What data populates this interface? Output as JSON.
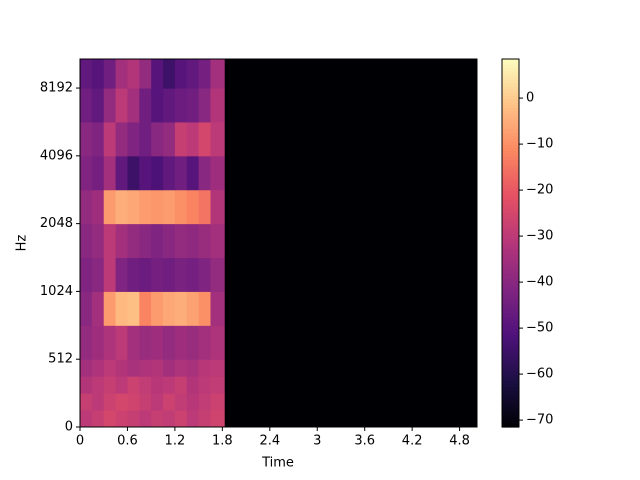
{
  "chart_data": {
    "type": "heatmap",
    "colormap": "magma",
    "yscale": "symlog",
    "xlabel": "Time",
    "ylabel": "Hz",
    "xlim": [
      0,
      5.02
    ],
    "xticks": [
      0,
      0.6,
      1.2,
      1.8,
      2.4,
      3,
      3.6,
      4.2,
      4.8
    ],
    "ylim": [
      0,
      11025
    ],
    "yticks": [
      0,
      512,
      1024,
      2048,
      4096,
      8192
    ],
    "clim": [
      -71.5,
      8.5
    ],
    "cticks": [
      0,
      {
        "value": -10,
        "label": "−10"
      },
      {
        "value": -20,
        "label": "−20"
      },
      {
        "value": -30,
        "label": "−30"
      },
      {
        "value": -40,
        "label": "−40"
      },
      {
        "value": -50,
        "label": "−50"
      },
      {
        "value": -60,
        "label": "−60"
      },
      {
        "value": -70,
        "label": "−70"
      }
    ],
    "x_edges": [
      0,
      0.15,
      0.3,
      0.45,
      0.6,
      0.75,
      0.9,
      1.05,
      1.2,
      1.35,
      1.5,
      1.65,
      1.83,
      5.02
    ],
    "y_edges": [
      0,
      128,
      256,
      384,
      512,
      724,
      1024,
      1448,
      2048,
      2896,
      4096,
      5793,
      8192,
      11025
    ],
    "values": [
      [
        -30,
        -28,
        -25,
        -27,
        -28,
        -30,
        -28,
        -29,
        -27,
        -30,
        -28,
        -26,
        -71.5
      ],
      [
        -28,
        -30,
        -27,
        -25,
        -26,
        -28,
        -30,
        -27,
        -29,
        -31,
        -29,
        -27,
        -71.5
      ],
      [
        -32,
        -30,
        -28,
        -30,
        -27,
        -29,
        -31,
        -30,
        -28,
        -32,
        -30,
        -29,
        -71.5
      ],
      [
        -35,
        -33,
        -30,
        -32,
        -34,
        -33,
        -32,
        -35,
        -33,
        -34,
        -31,
        -30,
        -71.5
      ],
      [
        -38,
        -36,
        -33,
        -30,
        -35,
        -37,
        -36,
        -38,
        -36,
        -37,
        -35,
        -33,
        -71.5
      ],
      [
        -40,
        -35,
        -8,
        -3,
        -2,
        -12,
        -8,
        -6,
        -5,
        -7,
        -10,
        -35,
        -71.5
      ],
      [
        -42,
        -40,
        -30,
        -42,
        -45,
        -46,
        -44,
        -45,
        -43,
        -44,
        -42,
        -38,
        -71.5
      ],
      [
        -40,
        -38,
        -30,
        -35,
        -38,
        -40,
        -42,
        -40,
        -38,
        -39,
        -37,
        -35,
        -71.5
      ],
      [
        -38,
        -36,
        -8,
        -5,
        -6,
        -8,
        -9,
        -8,
        -10,
        -12,
        -15,
        -32,
        -71.5
      ],
      [
        -42,
        -44,
        -35,
        -48,
        -55,
        -50,
        -52,
        -48,
        -45,
        -50,
        -40,
        -36,
        -71.5
      ],
      [
        -40,
        -42,
        -30,
        -38,
        -42,
        -45,
        -40,
        -38,
        -28,
        -30,
        -25,
        -30,
        -71.5
      ],
      [
        -45,
        -48,
        -38,
        -30,
        -35,
        -45,
        -50,
        -48,
        -46,
        -45,
        -40,
        -32,
        -71.5
      ],
      [
        -48,
        -50,
        -45,
        -35,
        -32,
        -38,
        -50,
        -55,
        -50,
        -48,
        -44,
        -35,
        -71.5
      ]
    ]
  }
}
